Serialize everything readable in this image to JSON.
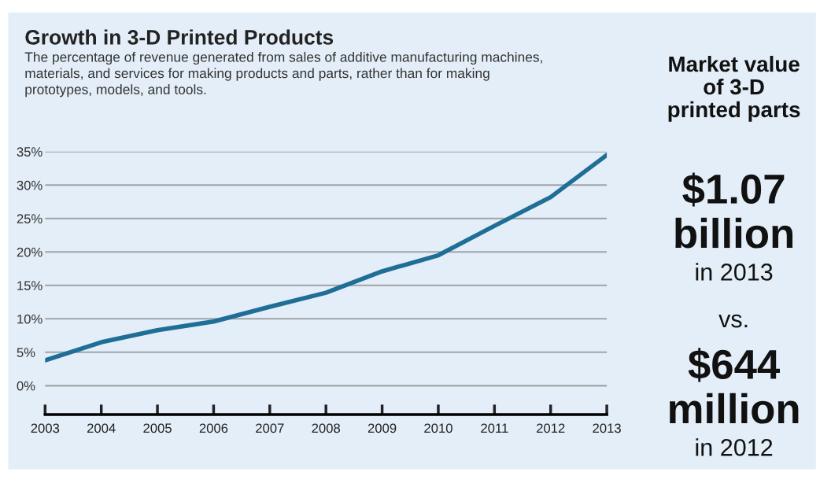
{
  "chart_data": {
    "type": "line",
    "title": "Growth in 3-D Printed Products",
    "subtitle": "The percentage of revenue generated from sales of additive manufacturing machines, materials, and services for making products and parts, rather than for making prototypes, models, and tools.",
    "x": [
      2003,
      2004,
      2005,
      2006,
      2007,
      2008,
      2009,
      2010,
      2011,
      2012,
      2013
    ],
    "series": [
      {
        "color": "#1f6e96",
        "values": [
          3.8,
          6.5,
          8.3,
          9.6,
          11.8,
          13.9,
          17.1,
          19.5,
          23.9,
          28.2,
          34.5
        ]
      }
    ],
    "xlim": [
      2003,
      2013
    ],
    "xticks": [
      2003,
      2004,
      2005,
      2006,
      2007,
      2008,
      2009,
      2010,
      2011,
      2012,
      2013
    ],
    "ylim": [
      -4.3,
      35
    ],
    "yticks": [
      {
        "value": 0,
        "label": "0%"
      },
      {
        "value": 5,
        "label": "5%"
      },
      {
        "value": 10,
        "label": "10%"
      },
      {
        "value": 15,
        "label": "15%"
      },
      {
        "value": 20,
        "label": "20%"
      },
      {
        "value": 25,
        "label": "25%"
      },
      {
        "value": 30,
        "label": "30%"
      },
      {
        "value": 35,
        "label": "35%"
      }
    ],
    "grid": "y",
    "legend": false,
    "marker": "none",
    "line_style": "solid",
    "annotations": [
      "Market value of 3-D printed parts",
      "$1.07",
      "billion",
      "in 2013",
      "vs.",
      "$644",
      "million",
      "in 2012"
    ]
  }
}
